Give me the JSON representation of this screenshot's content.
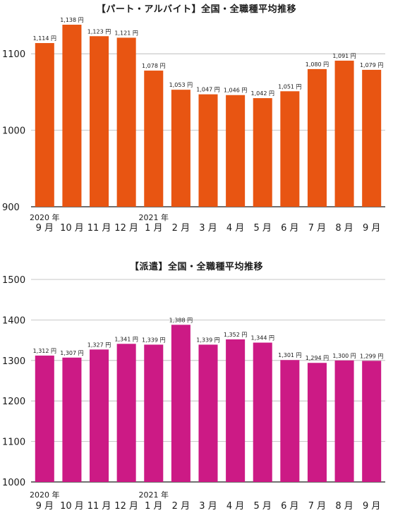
{
  "chart_data": [
    {
      "type": "bar",
      "title": "【パート・アルバイト】全国・全職種平均推移",
      "color": "#e85512",
      "ylim": [
        900,
        1150
      ],
      "yticks": [
        900,
        1000,
        1100
      ],
      "grid": true,
      "year_labels": [
        {
          "index": 0,
          "text": "2020 年"
        },
        {
          "index": 4,
          "text": "2021 年"
        }
      ],
      "categories": [
        "9 月",
        "10 月",
        "11 月",
        "12 月",
        "1 月",
        "2 月",
        "3 月",
        "4 月",
        "5 月",
        "6 月",
        "7 月",
        "8 月",
        "9 月"
      ],
      "values": [
        1114,
        1138,
        1123,
        1121,
        1078,
        1053,
        1047,
        1046,
        1042,
        1051,
        1080,
        1091,
        1079
      ],
      "data_labels": [
        "1,114 円",
        "1,138 円",
        "1,123 円",
        "1,121 円",
        "1,078 円",
        "1,053 円",
        "1,047 円",
        "1,046 円",
        "1,042 円",
        "1,051 円",
        "1,080 円",
        "1,091 円",
        "1,079 円"
      ]
    },
    {
      "type": "bar",
      "title": "【派遣】全国・全職種平均推移",
      "color": "#cc1a85",
      "ylim": [
        1000,
        1500
      ],
      "yticks": [
        1000,
        1100,
        1200,
        1300,
        1400,
        1500
      ],
      "grid": true,
      "year_labels": [
        {
          "index": 0,
          "text": "2020 年"
        },
        {
          "index": 4,
          "text": "2021 年"
        }
      ],
      "categories": [
        "9 月",
        "10 月",
        "11 月",
        "12 月",
        "1 月",
        "2 月",
        "3 月",
        "4 月",
        "5 月",
        "6 月",
        "7 月",
        "8 月",
        "9 月"
      ],
      "values": [
        1312,
        1307,
        1327,
        1341,
        1339,
        1388,
        1339,
        1352,
        1344,
        1301,
        1294,
        1300,
        1299
      ],
      "data_labels": [
        "1,312 円",
        "1,307 円",
        "1,327 円",
        "1,341 円",
        "1,339 円",
        "1,388 円",
        "1,339 円",
        "1,352 円",
        "1,344 円",
        "1,301 円",
        "1,294 円",
        "1,300 円",
        "1,299 円"
      ]
    }
  ]
}
